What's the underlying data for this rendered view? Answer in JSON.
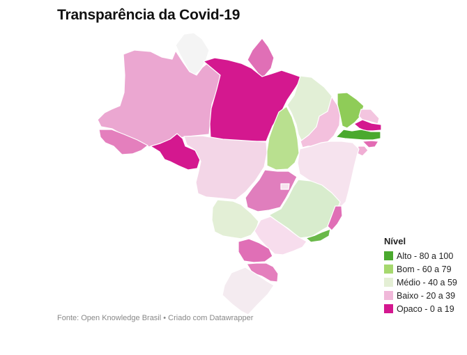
{
  "title": "Transparência da Covid-19",
  "legend": {
    "title": "Nível",
    "items": [
      {
        "label": "Alto - 80 a 100",
        "color": "#4aa92e"
      },
      {
        "label": "Bom - 60 a 79",
        "color": "#a6d86e"
      },
      {
        "label": "Médio - 40 a 59",
        "color": "#e4efd5"
      },
      {
        "label": "Baixo - 20 a 39",
        "color": "#f0b8d9"
      },
      {
        "label": "Opaco - 0 a 19",
        "color": "#d4188f"
      }
    ]
  },
  "source": "Fonte: Open Knowledge Brasil • Criado com Datawrapper",
  "states": [
    {
      "name": "RR",
      "color": "#f4f4f4"
    },
    {
      "name": "AP",
      "color": "#e06fb6"
    },
    {
      "name": "AM",
      "color": "#eba7d1"
    },
    {
      "name": "PA",
      "color": "#d4188f"
    },
    {
      "name": "AC",
      "color": "#e47fbd"
    },
    {
      "name": "RO",
      "color": "#d4188f"
    },
    {
      "name": "MT",
      "color": "#f3d6e7"
    },
    {
      "name": "TO",
      "color": "#b9e08f"
    },
    {
      "name": "MA",
      "color": "#e2efd6"
    },
    {
      "name": "PI",
      "color": "#f3c0dd"
    },
    {
      "name": "CE",
      "color": "#8fcc58"
    },
    {
      "name": "RN",
      "color": "#f3c5df"
    },
    {
      "name": "PB",
      "color": "#d4188f"
    },
    {
      "name": "PE",
      "color": "#4aa92e"
    },
    {
      "name": "AL",
      "color": "#e26bb3"
    },
    {
      "name": "SE",
      "color": "#f0aed4"
    },
    {
      "name": "BA",
      "color": "#f6e3ee"
    },
    {
      "name": "GO",
      "color": "#e07ebd"
    },
    {
      "name": "DF",
      "color": "#f6e3ee"
    },
    {
      "name": "MG",
      "color": "#d8eccd"
    },
    {
      "name": "ES",
      "color": "#e06fb6"
    },
    {
      "name": "RJ",
      "color": "#6ab94a"
    },
    {
      "name": "MS",
      "color": "#e3efd6"
    },
    {
      "name": "SP",
      "color": "#f7dded"
    },
    {
      "name": "PR",
      "color": "#e06fb6"
    },
    {
      "name": "SC",
      "color": "#e47fbd"
    },
    {
      "name": "RS",
      "color": "#f4ebf0"
    }
  ]
}
